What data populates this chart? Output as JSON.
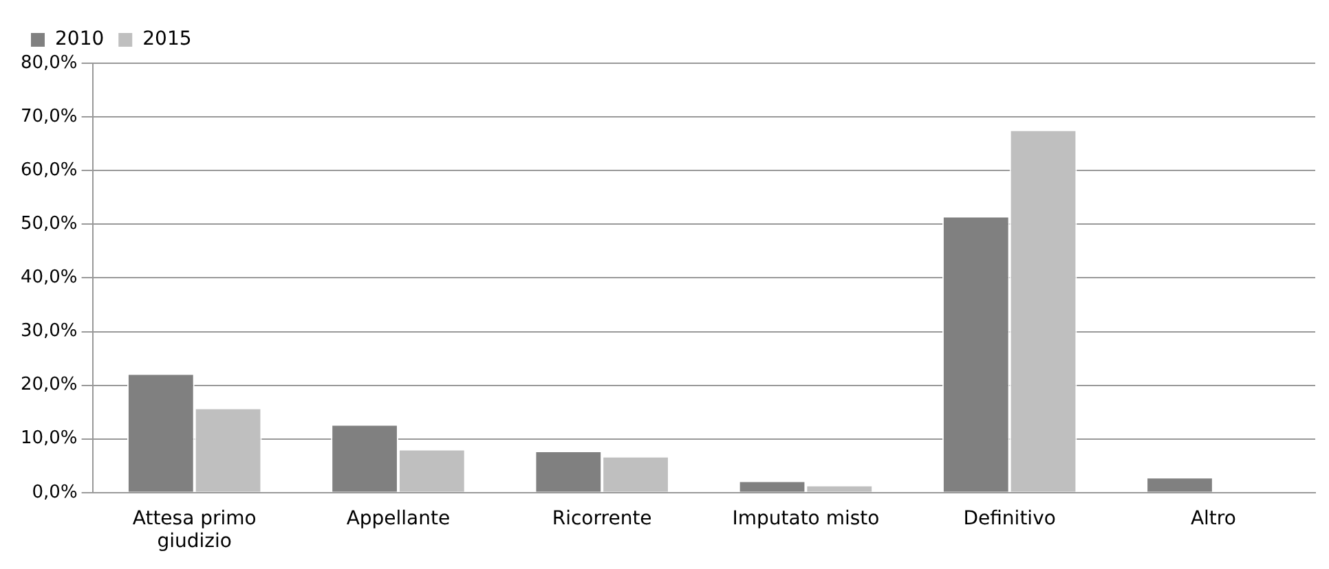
{
  "chart_data": {
    "type": "bar",
    "categories": [
      "Attesa primo giudizio",
      "Appellante",
      "Ricorrente",
      "Imputato misto",
      "Definitivo",
      "Altro"
    ],
    "series": [
      {
        "name": "2010",
        "color": "#808080",
        "values": [
          22.2,
          12.7,
          7.8,
          2.2,
          51.5,
          2.9
        ]
      },
      {
        "name": "2015",
        "color": "#bfbfbf",
        "values": [
          15.8,
          8.1,
          6.8,
          1.4,
          67.6,
          0
        ]
      }
    ],
    "ylim": [
      0,
      80
    ],
    "yticks": [
      {
        "value": 0,
        "label": "0,0%"
      },
      {
        "value": 10,
        "label": "10,0%"
      },
      {
        "value": 20,
        "label": "20,0%"
      },
      {
        "value": 30,
        "label": "30,0%"
      },
      {
        "value": 40,
        "label": "40,0%"
      },
      {
        "value": 50,
        "label": "50,0%"
      },
      {
        "value": 60,
        "label": "60,0%"
      },
      {
        "value": 70,
        "label": "70,0%"
      },
      {
        "value": 80,
        "label": "80,0%"
      }
    ],
    "grid": "y",
    "legend": "top left"
  }
}
